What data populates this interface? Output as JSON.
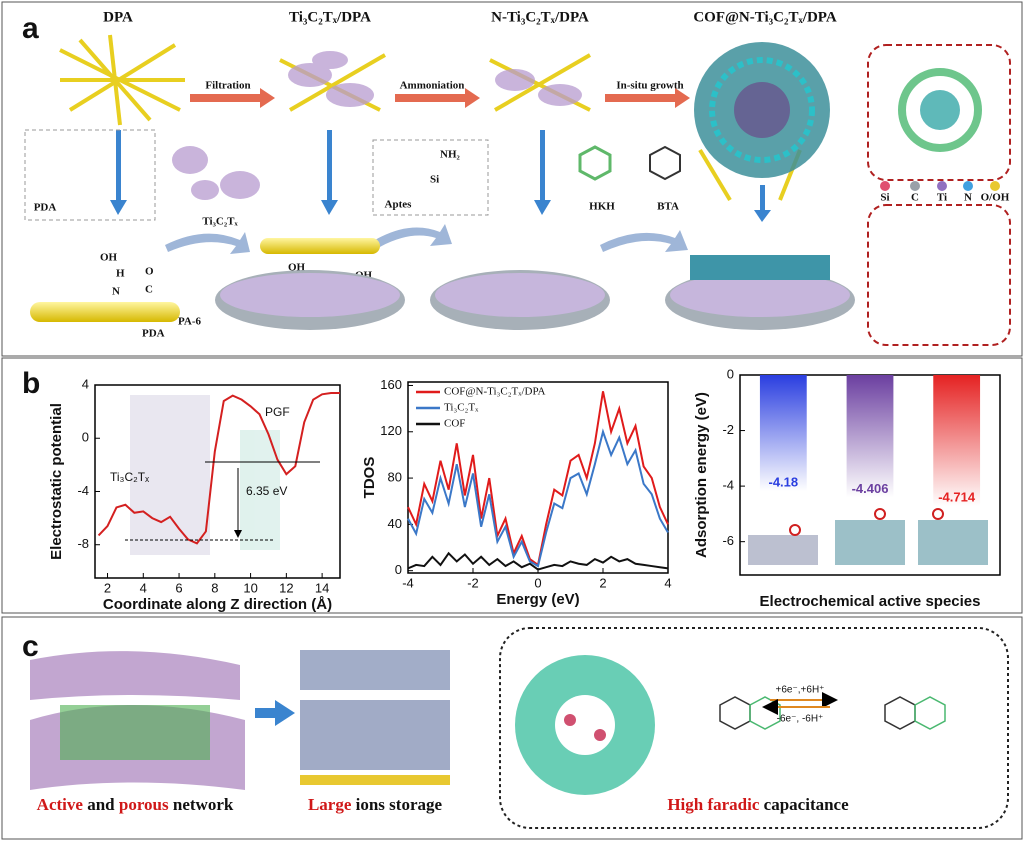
{
  "panel_a": {
    "label": "a",
    "stages": [
      "DPA",
      "Ti₃C₂Tₓ/DPA",
      "N-Ti₃C₂Tₓ/DPA",
      "COF@N-Ti₃C₂Tₓ/DPA"
    ],
    "steps": [
      "Filtration",
      "Ammoniation",
      "In-situ growth"
    ],
    "components": [
      "PDA",
      "Ti₃C₂Tₓ",
      "Aptes",
      "HKH",
      "BTA"
    ],
    "elements": [
      "Si",
      "C",
      "Ti",
      "N",
      "O/OH"
    ],
    "annotations": [
      "OH",
      "H",
      "N",
      "C",
      "O",
      "PDA",
      "PA-6",
      "OH",
      "OH",
      "NH₂",
      "Si"
    ]
  },
  "panel_b": {
    "label": "b"
  },
  "chart_data": [
    {
      "type": "line",
      "xlabel": "Coordinate along Z direction (Å)",
      "ylabel": "Electrostatic potential",
      "xlim": [
        1.3,
        15
      ],
      "ylim": [
        -10.5,
        4
      ],
      "xticks": [
        2,
        4,
        6,
        8,
        10,
        12,
        14
      ],
      "yticks": [
        -8,
        -4,
        0,
        4
      ],
      "annotations": [
        "Ti₃C₂Tₓ",
        "PGF",
        "6.35 eV"
      ],
      "x": [
        1.5,
        2,
        2.5,
        3,
        3.5,
        4,
        4.5,
        5,
        5.5,
        6,
        6.5,
        7,
        7.5,
        8,
        8.5,
        9,
        9.5,
        10,
        10.5,
        11,
        11.5,
        12,
        12.5,
        13,
        13.5,
        14,
        14.5,
        15
      ],
      "series": [
        {
          "color": "#d42020",
          "values": [
            -7.3,
            -6.6,
            -5.2,
            -5.0,
            -5.6,
            -5.5,
            -6.0,
            -6.3,
            -5.9,
            -6.8,
            -7.6,
            -7.9,
            -7.0,
            -1.0,
            2.8,
            3.2,
            2.9,
            2.4,
            1.8,
            0.3,
            -1.6,
            -2.7,
            -2.1,
            1.2,
            2.9,
            3.3,
            3.4,
            3.4
          ]
        }
      ]
    },
    {
      "type": "line",
      "xlabel": "Energy (eV)",
      "ylabel": "TDOS",
      "xlim": [
        -4,
        4
      ],
      "ylim": [
        -2,
        163
      ],
      "xticks": [
        -4,
        -2,
        0,
        2,
        4
      ],
      "yticks": [
        0,
        40,
        80,
        120,
        160
      ],
      "x": [
        -4,
        -3.75,
        -3.5,
        -3.25,
        -3,
        -2.75,
        -2.5,
        -2.25,
        -2,
        -1.75,
        -1.5,
        -1.25,
        -1,
        -0.75,
        -0.5,
        -0.25,
        0,
        0.25,
        0.5,
        0.75,
        1,
        1.25,
        1.5,
        1.75,
        2,
        2.25,
        2.5,
        2.75,
        3,
        3.25,
        3.5,
        3.75,
        4
      ],
      "series": [
        {
          "name": "COF@N-Ti₃C₂Tₓ/DPA",
          "color": "#e01b1b",
          "values": [
            55,
            40,
            75,
            60,
            95,
            70,
            110,
            65,
            100,
            45,
            80,
            30,
            45,
            15,
            30,
            10,
            5,
            40,
            70,
            65,
            95,
            100,
            80,
            110,
            155,
            120,
            140,
            110,
            125,
            90,
            80,
            55,
            40
          ]
        },
        {
          "name": "Ti₃C₂Tₓ",
          "color": "#3b78c8",
          "values": [
            45,
            32,
            62,
            50,
            80,
            58,
            92,
            55,
            84,
            38,
            66,
            25,
            38,
            12,
            25,
            8,
            4,
            33,
            58,
            54,
            80,
            84,
            66,
            92,
            120,
            100,
            115,
            92,
            104,
            75,
            66,
            45,
            33
          ]
        },
        {
          "name": "COF",
          "color": "#111111",
          "values": [
            2,
            5,
            4,
            12,
            5,
            15,
            8,
            14,
            6,
            12,
            5,
            10,
            4,
            8,
            3,
            6,
            1,
            3,
            5,
            4,
            8,
            6,
            5,
            10,
            7,
            12,
            8,
            10,
            6,
            5,
            4,
            3,
            2
          ]
        }
      ]
    },
    {
      "type": "bar",
      "xlabel": "Electrochemical active species",
      "ylabel": "Adsorption energy (eV)",
      "ylim": [
        -7.2,
        0
      ],
      "yticks": [
        -6,
        -4,
        -2,
        0
      ],
      "categories": [
        null,
        null,
        null
      ],
      "values": [
        -4.18,
        -4.406,
        -4.714
      ],
      "colors": [
        "#2a3ee0",
        "#6b3fa0",
        "#e52222"
      ]
    }
  ],
  "panel_c": {
    "label": "c",
    "caption_1": [
      "Active",
      " and ",
      "porous",
      " network"
    ],
    "caption_2": [
      "Large",
      " ions storage"
    ],
    "caption_3": [
      "High faradic",
      " capacitance"
    ],
    "reaction": [
      "+6e⁻,+6H⁺",
      "-6e⁻, -6H⁺"
    ]
  }
}
